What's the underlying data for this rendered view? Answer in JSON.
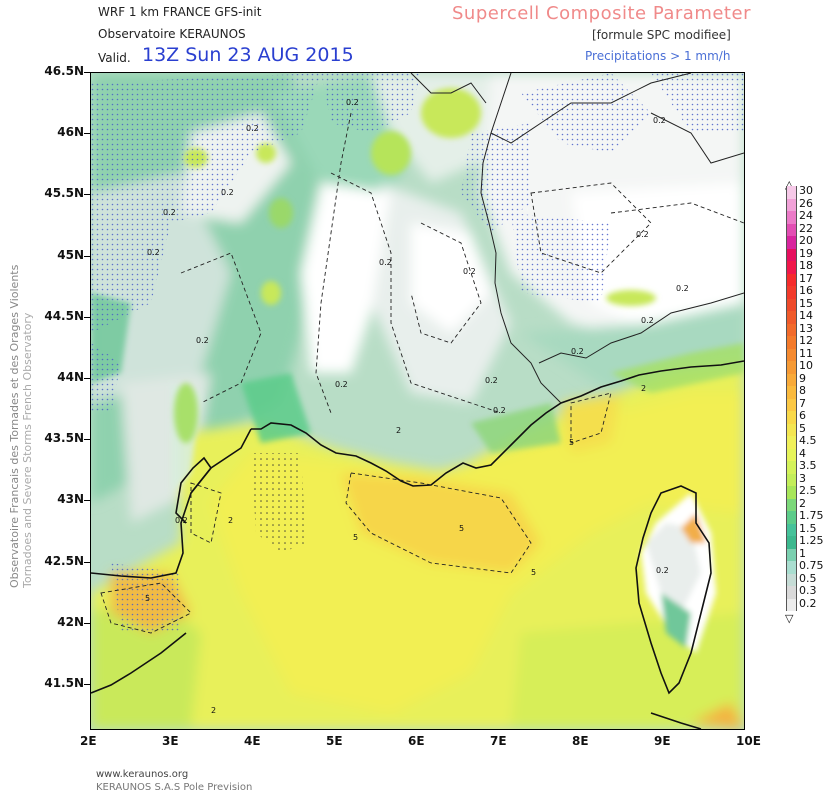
{
  "header": {
    "model_line": "WRF 1 km FRANCE  GFS-init",
    "observatory": "Observatoire KERAUNOS",
    "valid_label": "Valid.",
    "valid_time": "13Z Sun 23 AUG 2015",
    "title": "Supercell Composite Parameter",
    "subtitle": "[formule SPC modifiee]",
    "precip_note": "Precipitations > 1 mm/h"
  },
  "side_credit": {
    "line1": "Observatoire Francais des Tornades et des Orages Violents",
    "line2": "Tornadoes and Severe Storms French Observatory"
  },
  "footer": {
    "url": "www.keraunos.org",
    "company": "KERAUNOS S.A.S Pole Prevision"
  },
  "axes": {
    "lat_ticks": [
      "46.5N",
      "46N",
      "45.5N",
      "45N",
      "44.5N",
      "44N",
      "43.5N",
      "43N",
      "42.5N",
      "42N",
      "41.5N"
    ],
    "lon_ticks": [
      "2E",
      "3E",
      "4E",
      "5E",
      "6E",
      "7E",
      "8E",
      "9E",
      "10E"
    ]
  },
  "colorbar": {
    "labels": [
      "30",
      "26",
      "24",
      "22",
      "20",
      "19",
      "18",
      "17",
      "16",
      "15",
      "14",
      "13",
      "12",
      "11",
      "10",
      "9",
      "8",
      "7",
      "6",
      "5",
      "4.5",
      "4",
      "3.5",
      "3",
      "2.5",
      "2",
      "1.75",
      "1.5",
      "1.25",
      "1",
      "0.75",
      "0.5",
      "0.3",
      "0.2"
    ],
    "colors": [
      "#f6c9e8",
      "#f1a2d8",
      "#ec7ac8",
      "#e24eb3",
      "#d8259e",
      "#e60f5e",
      "#f0174a",
      "#f52b2b",
      "#f23a2a",
      "#ee4a2a",
      "#f05a2a",
      "#f26a2a",
      "#f47a2a",
      "#f58a30",
      "#f69a35",
      "#f8aa3a",
      "#faba3e",
      "#fbc845",
      "#f9d94a",
      "#f4e652",
      "#f0f05a",
      "#e6f45a",
      "#d4f25a",
      "#c3ee5a",
      "#a8e65a",
      "#7cd87a",
      "#5ccc8a",
      "#46c29a",
      "#3cb88e",
      "#7bd0b0",
      "#a9ded0",
      "#c6dcd6",
      "#dadada",
      "#ececec"
    ],
    "unit_arrows": [
      "up",
      "down"
    ]
  },
  "map_labels": {
    "contour_02": "0.2",
    "contour_2": "2",
    "contour_5": "5"
  }
}
